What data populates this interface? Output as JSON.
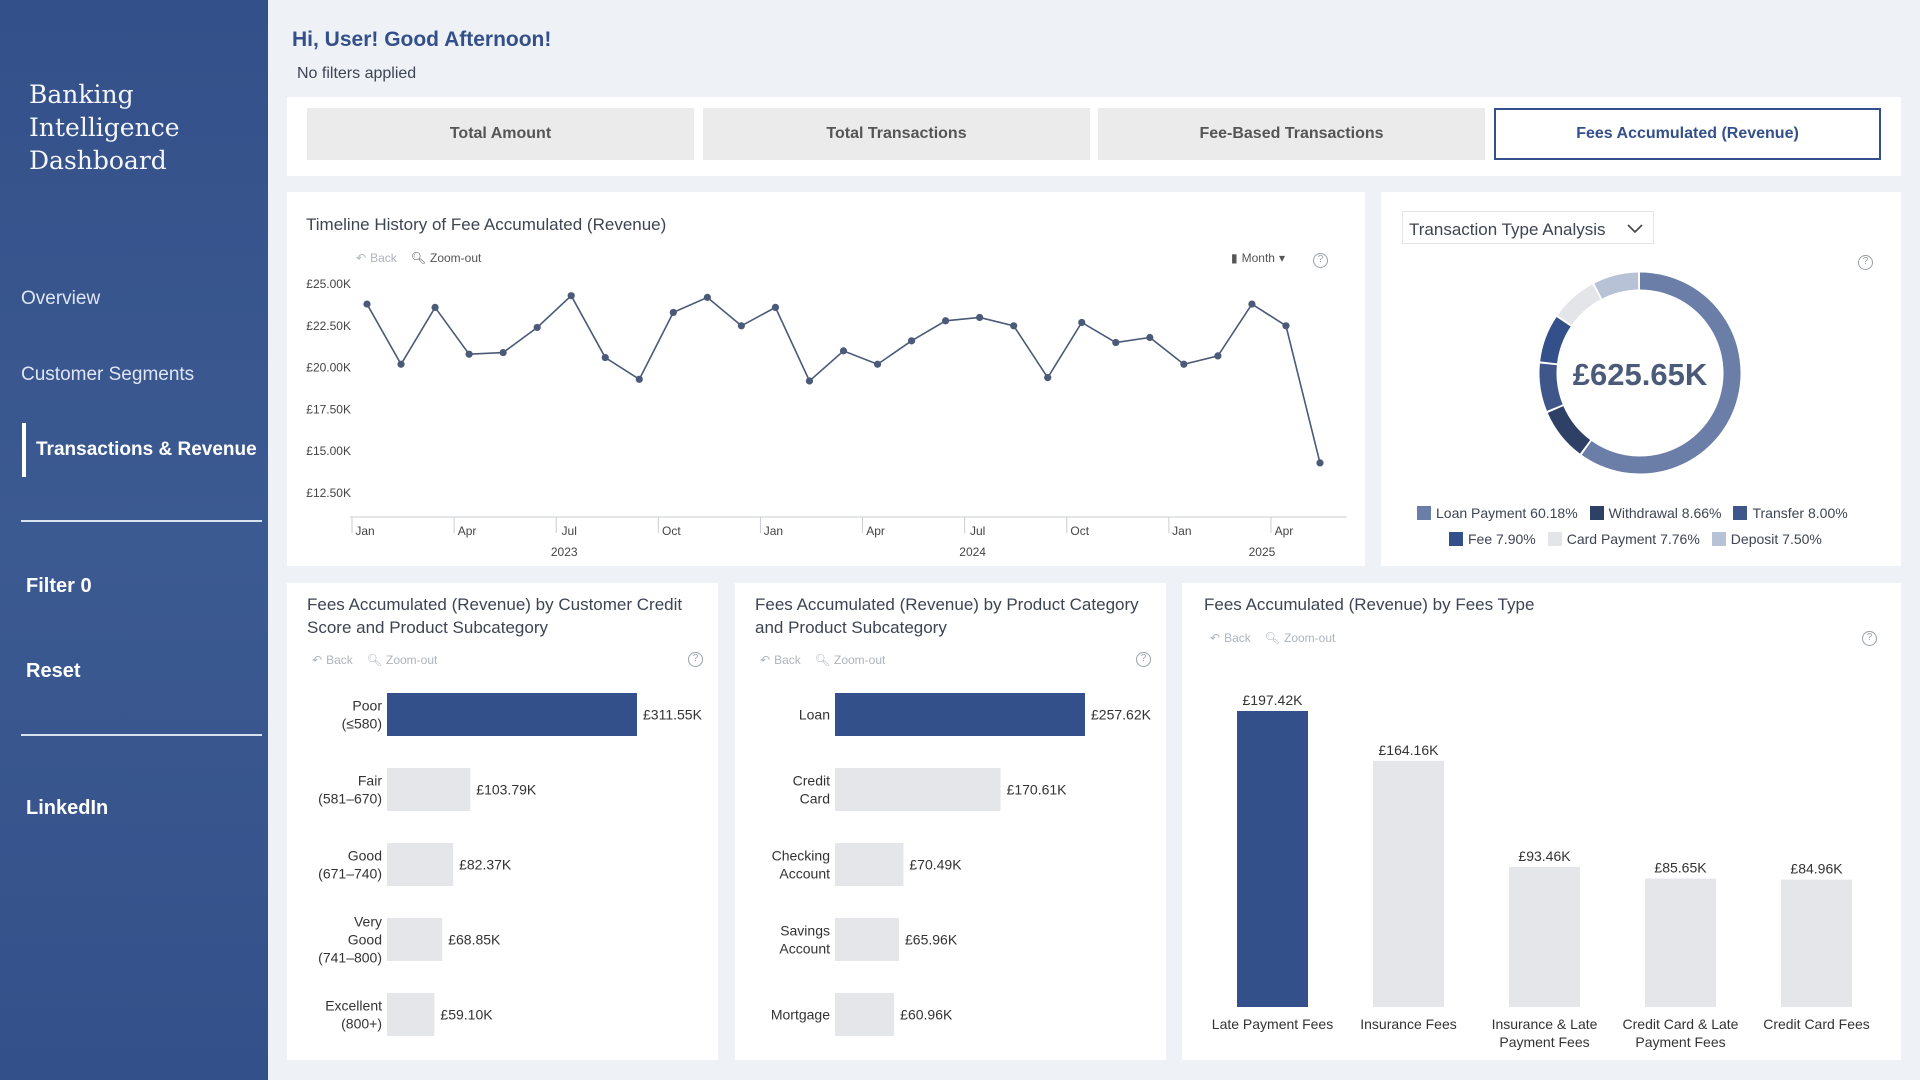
{
  "sidebar": {
    "brand_lines": [
      "Banking",
      "Intelligence",
      "Dashboard"
    ],
    "nav": [
      "Overview",
      "Customer Segments",
      "Transactions & Revenue"
    ],
    "filter_label": "Filter 0",
    "reset_label": "Reset",
    "linkedin_label": "LinkedIn"
  },
  "header": {
    "greeting": "Hi, User! Good Afternoon!",
    "filter_status": "No filters applied"
  },
  "kpi_tabs": [
    "Total Amount",
    "Total Transactions",
    "Fee-Based Transactions",
    "Fees Accumulated (Revenue)"
  ],
  "toolbar": {
    "back": "Back",
    "zoom_out": "Zoom-out",
    "month": "Month"
  },
  "colors": {
    "primary": "#34508a",
    "bar_light": "#e4e6ea",
    "line": "#4a5a78"
  },
  "donut": {
    "dropdown_label": "Transaction Type Analysis",
    "center_value": "£625.65K",
    "legend": [
      {
        "label": "Loan Payment 60.18%",
        "color": "#6b7ea8"
      },
      {
        "label": "Withdrawal 8.66%",
        "color": "#2e4066"
      },
      {
        "label": "Transfer 8.00%",
        "color": "#3f568a"
      },
      {
        "label": "Fee 7.90%",
        "color": "#34508a"
      },
      {
        "label": "Card Payment 7.76%",
        "color": "#e3e5e9"
      },
      {
        "label": "Deposit 7.50%",
        "color": "#b8c2d6"
      }
    ]
  },
  "chart_data": [
    {
      "type": "line",
      "title": "Timeline History of Fee Accumulated (Revenue)",
      "x": [
        "2023-01",
        "2023-02",
        "2023-03",
        "2023-04",
        "2023-05",
        "2023-06",
        "2023-07",
        "2023-08",
        "2023-09",
        "2023-10",
        "2023-11",
        "2023-12",
        "2024-01",
        "2024-02",
        "2024-03",
        "2024-04",
        "2024-05",
        "2024-06",
        "2024-07",
        "2024-08",
        "2024-09",
        "2024-10",
        "2024-11",
        "2024-12",
        "2025-01",
        "2025-02",
        "2025-03",
        "2025-04",
        "2025-05"
      ],
      "values": [
        23800,
        20200,
        23600,
        20800,
        20900,
        22400,
        24300,
        20600,
        19300,
        23300,
        24200,
        22500,
        23600,
        19200,
        21000,
        20200,
        21600,
        22800,
        23000,
        22500,
        19400,
        22700,
        21500,
        21800,
        20200,
        20700,
        23800,
        22500,
        14300
      ],
      "y_ticks": [
        "£25.00K",
        "£22.50K",
        "£20.00K",
        "£17.50K",
        "£15.00K",
        "£12.50K"
      ],
      "ylim": [
        12500,
        25000
      ],
      "x_tick_labels": [
        "Jan",
        "Apr",
        "Jul",
        "Oct",
        "Jan",
        "Apr",
        "Jul",
        "Oct",
        "Jan",
        "Apr"
      ],
      "year_labels": [
        "2023",
        "2024",
        "2025"
      ]
    },
    {
      "type": "pie",
      "title": "Transaction Type Analysis",
      "categories": [
        "Loan Payment",
        "Withdrawal",
        "Transfer",
        "Fee",
        "Card Payment",
        "Deposit"
      ],
      "values": [
        60.18,
        8.66,
        8.0,
        7.9,
        7.76,
        7.5
      ],
      "center_label": "£625.65K"
    },
    {
      "type": "bar",
      "orientation": "horizontal",
      "title": "Fees Accumulated (Revenue) by Customer Credit Score and Product Subcategory",
      "categories": [
        [
          "Poor",
          "(≤580)"
        ],
        [
          "Fair",
          "(581–670)"
        ],
        [
          "Good",
          "(671–740)"
        ],
        [
          "Very",
          "Good",
          "(741–800)"
        ],
        [
          "Excellent",
          "(800+)"
        ]
      ],
      "values": [
        311.55,
        103.79,
        82.37,
        68.85,
        59.1
      ],
      "labels": [
        "£311.55K",
        "£103.79K",
        "£82.37K",
        "£68.85K",
        "£59.10K"
      ]
    },
    {
      "type": "bar",
      "orientation": "horizontal",
      "title": "Fees Accumulated (Revenue) by Product Category and Product Subcategory",
      "categories": [
        [
          "Loan"
        ],
        [
          "Credit",
          "Card"
        ],
        [
          "Checking",
          "Account"
        ],
        [
          "Savings",
          "Account"
        ],
        [
          "Mortgage"
        ]
      ],
      "values": [
        257.62,
        170.61,
        70.49,
        65.96,
        60.96
      ],
      "labels": [
        "£257.62K",
        "£170.61K",
        "£70.49K",
        "£65.96K",
        "£60.96K"
      ]
    },
    {
      "type": "bar",
      "orientation": "vertical",
      "title": "Fees Accumulated (Revenue) by Fees Type",
      "categories": [
        [
          "Late Payment Fees"
        ],
        [
          "Insurance Fees"
        ],
        [
          "Insurance & Late",
          "Payment Fees"
        ],
        [
          "Credit Card & Late",
          "Payment Fees"
        ],
        [
          "Credit Card Fees"
        ]
      ],
      "values": [
        197.42,
        164.16,
        93.46,
        85.65,
        84.96
      ],
      "labels": [
        "£197.42K",
        "£164.16K",
        "£93.46K",
        "£85.65K",
        "£84.96K"
      ]
    }
  ]
}
